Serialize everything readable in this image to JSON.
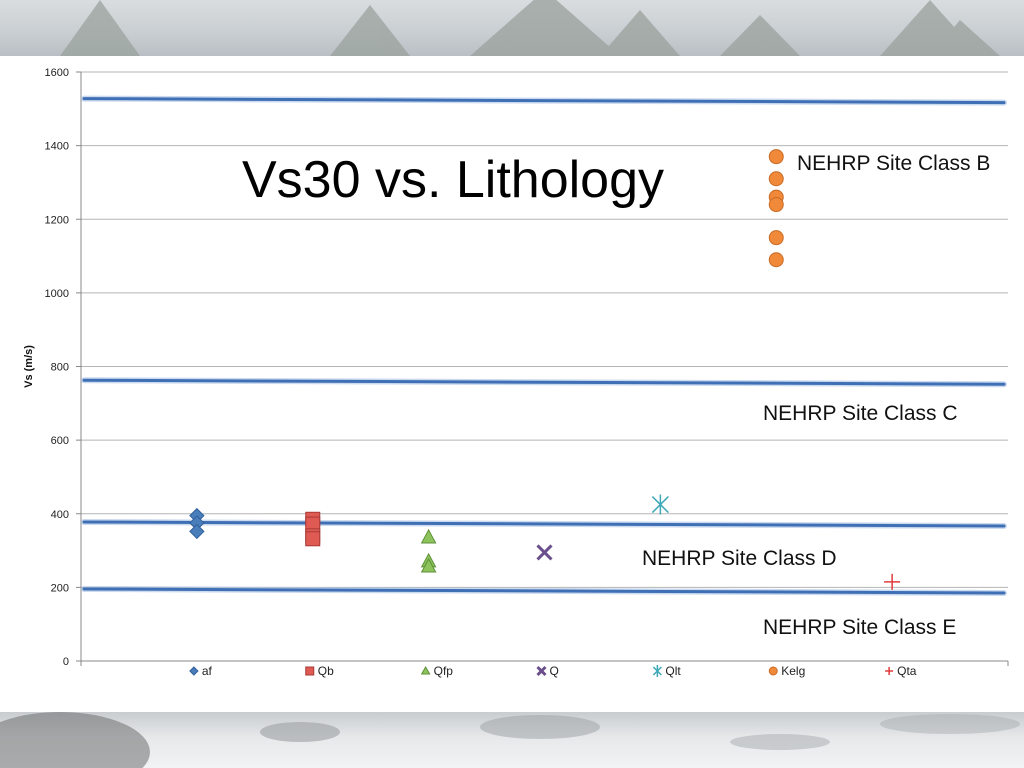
{
  "chart_data": {
    "type": "scatter",
    "title": "Vs30 vs. Lithology",
    "ylabel": "Vs (m/s)",
    "xlabel": "",
    "ylim": [
      0,
      1600
    ],
    "yticks": [
      0,
      200,
      400,
      600,
      800,
      1000,
      1200,
      1400,
      1600
    ],
    "grid": true,
    "legend_position": "bottom",
    "series": [
      {
        "name": "af",
        "marker": "diamond",
        "color": "#4a7ebb",
        "x": [
          1,
          1,
          1
        ],
        "values": [
          395,
          375,
          352
        ]
      },
      {
        "name": "Qb",
        "marker": "square",
        "color": "#e05a54",
        "x": [
          2,
          2,
          2,
          2
        ],
        "values": [
          385,
          372,
          340,
          332
        ]
      },
      {
        "name": "Qfp",
        "marker": "triangle",
        "color": "#8cc35a",
        "x": [
          3,
          3,
          3
        ],
        "values": [
          337,
          272,
          258
        ]
      },
      {
        "name": "Q",
        "marker": "x",
        "color": "#6a4f8c",
        "x": [
          4
        ],
        "values": [
          295
        ]
      },
      {
        "name": "Qlt",
        "marker": "asterisk",
        "color": "#3ca8b8",
        "x": [
          5
        ],
        "values": [
          425
        ]
      },
      {
        "name": "Kelg",
        "marker": "circle",
        "color": "#f08a3a",
        "x": [
          6,
          6,
          6,
          6,
          6,
          6
        ],
        "values": [
          1370,
          1310,
          1260,
          1240,
          1150,
          1090
        ]
      },
      {
        "name": "Qta",
        "marker": "plus",
        "color": "#e03c3c",
        "x": [
          7
        ],
        "values": [
          215
        ]
      }
    ],
    "reference_lines": [
      {
        "value": 1525,
        "color": "#3f6fb5"
      },
      {
        "value": 760,
        "color": "#3f6fb5"
      },
      {
        "value": 375,
        "color": "#3f6fb5"
      },
      {
        "value": 193,
        "color": "#3f6fb5"
      }
    ],
    "annotations": [
      {
        "text": "NEHRP Site Class B"
      },
      {
        "text": "NEHRP Site Class C"
      },
      {
        "text": "NEHRP Site Class D"
      },
      {
        "text": "NEHRP Site Class E"
      }
    ]
  }
}
